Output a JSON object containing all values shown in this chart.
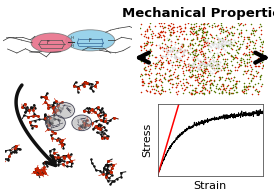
{
  "title": "Mechanical Properties",
  "title_fontsize": 9.5,
  "title_fontweight": "bold",
  "bg_color": "#ffffff",
  "stress_strain": {
    "xlabel": "Strain",
    "ylabel": "Stress",
    "xlabel_fontsize": 8,
    "ylabel_fontsize": 8,
    "noise_amplitude": 0.008,
    "curve_color": "black",
    "linear_color": "red",
    "linewidth": 0.7,
    "linear_linewidth": 1.1
  },
  "morph_bg": "#111111",
  "red_color": "#cc2200",
  "green_color": "#557700",
  "grey_color": "#aaaaaa",
  "white_color": "#dddddd",
  "pink_color": "#e8708a",
  "blue_color": "#88cce8",
  "arrow_color": "#111111",
  "backbone_color": "#111111",
  "sidechain_color": "#cc2200",
  "fullerene_color": "#777788"
}
